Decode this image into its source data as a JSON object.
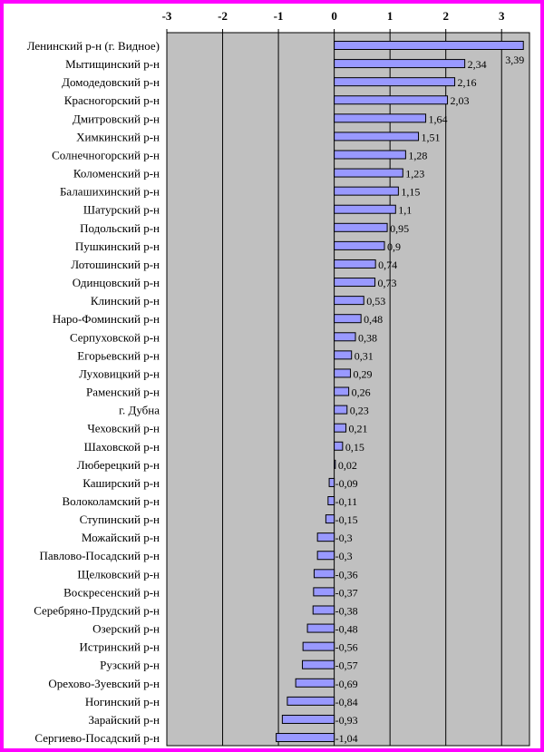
{
  "chart_data": {
    "type": "bar",
    "orientation": "horizontal",
    "title": "",
    "xlabel": "",
    "ylabel": "",
    "xlim": [
      -3,
      3.5
    ],
    "x_ticks": [
      "-3",
      "-2",
      "-1",
      "0",
      "1",
      "2",
      "3"
    ],
    "x_axis_position": "top",
    "grid": true,
    "legend": "none",
    "colors": {
      "bar_fill": "#9999ff",
      "bar_stroke": "#000000",
      "plot_background": "#c0c0c0",
      "border": "#ff00ff"
    },
    "categories": [
      "Ленинский р-н (г. Видное)",
      "Мытищинский р-н",
      "Домодедовский р-н",
      "Красногорский р-н",
      "Дмитровский р-н",
      "Химкинский р-н",
      "Солнечногорский р-н",
      "Коломенский р-н",
      "Балашихинский р-н",
      "Шатурский р-н",
      "Подольский р-н",
      "Пушкинский р-н",
      "Лотошинский р-н",
      "Одинцовский р-н",
      "Клинский р-н",
      "Наро-Фоминский р-н",
      "Серпуховской р-н",
      "Егорьевский р-н",
      "Луховицкий р-н",
      "Раменский р-н",
      "г. Дубна",
      "Чеховский р-н",
      "Шаховской р-н",
      "Люберецкий р-н",
      "Каширский р-н",
      "Волоколамский р-н",
      "Ступинский р-н",
      "Можайский р-н",
      "Павлово-Посадский р-н",
      "Щелковский р-н",
      "Воскресенский р-н",
      "Серебряно-Прудский р-н",
      "Озерский р-н",
      "Истринский р-н",
      "Рузский р-н",
      "Орехово-Зуевский р-н",
      "Ногинский р-н",
      "Зарайский р-н",
      "Сергиево-Посадский р-н"
    ],
    "values": [
      3.39,
      2.34,
      2.16,
      2.03,
      1.64,
      1.51,
      1.28,
      1.23,
      1.15,
      1.1,
      0.95,
      0.9,
      0.74,
      0.73,
      0.53,
      0.48,
      0.38,
      0.31,
      0.29,
      0.26,
      0.23,
      0.21,
      0.15,
      0.02,
      -0.09,
      -0.11,
      -0.15,
      -0.3,
      -0.3,
      -0.36,
      -0.37,
      -0.38,
      -0.48,
      -0.56,
      -0.57,
      -0.69,
      -0.84,
      -0.93,
      -1.04
    ],
    "value_labels": [
      "3,39",
      "2,34",
      "2,16",
      "2,03",
      "1,64",
      "1,51",
      "1,28",
      "1,23",
      "1,15",
      "1,1",
      "0,95",
      "0,9",
      "0,74",
      "0,73",
      "0,53",
      "0,48",
      "0,38",
      "0,31",
      "0,29",
      "0,26",
      "0,23",
      "0,21",
      "0,15",
      "0,02",
      "-0,09",
      "-0,11",
      "-0,15",
      "-0,3",
      "-0,3",
      "-0,36",
      "-0,37",
      "-0,38",
      "-0,48",
      "-0,56",
      "-0,57",
      "-0,69",
      "-0,84",
      "-0,93",
      "-1,04"
    ]
  }
}
